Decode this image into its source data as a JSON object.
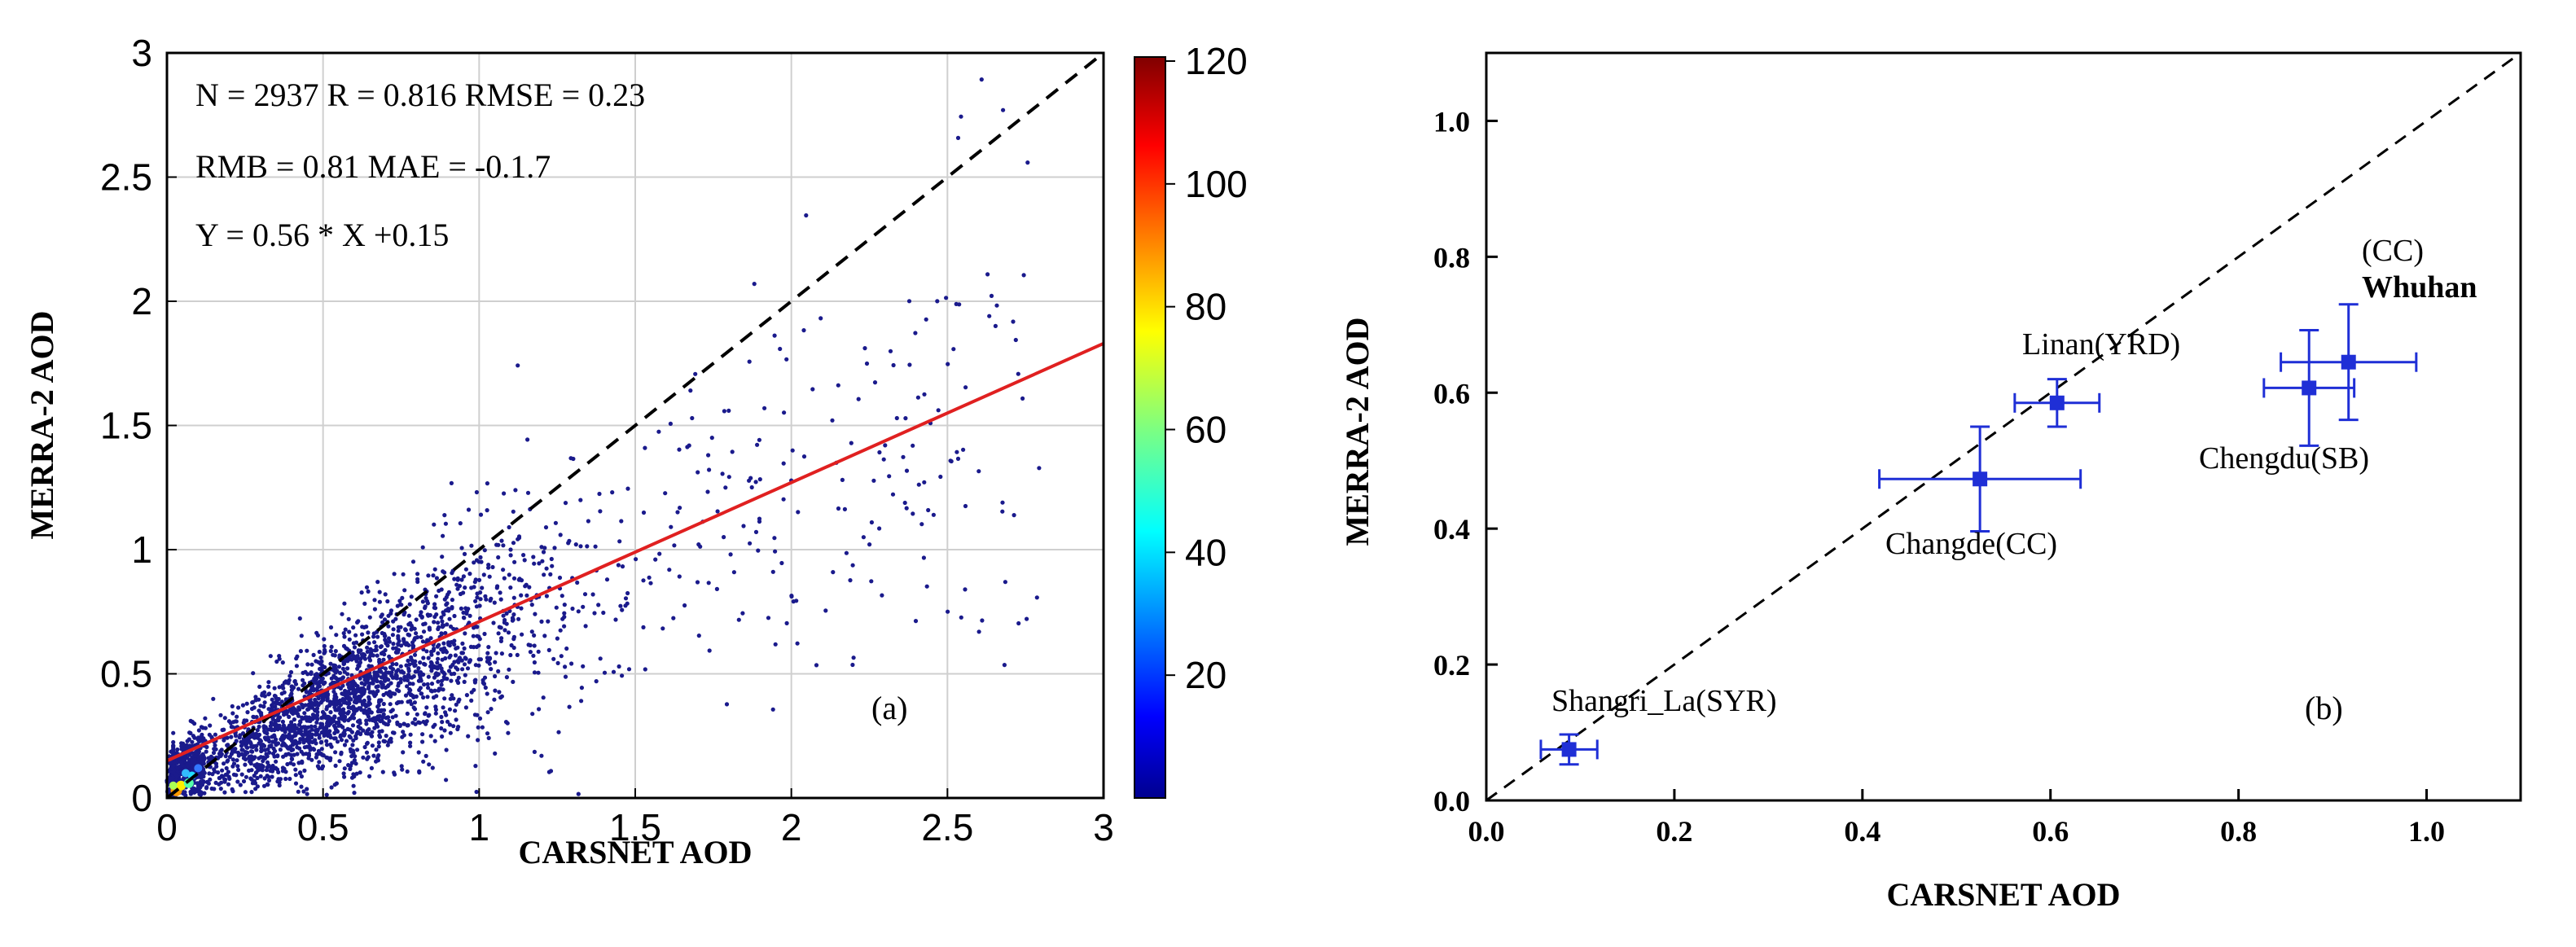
{
  "chart_data": [
    {
      "type": "scatter",
      "panel_label": "(a)",
      "xlabel": "CARSNET AOD",
      "ylabel": "MERRA-2 AOD",
      "xlim": [
        0,
        3
      ],
      "ylim": [
        0,
        3
      ],
      "xticks": [
        0,
        0.5,
        1,
        1.5,
        2,
        2.5,
        3
      ],
      "yticks": [
        0,
        0.5,
        1,
        1.5,
        2,
        2.5,
        3
      ],
      "xtick_labels": [
        "0",
        "0.5",
        "1",
        "1.5",
        "2",
        "2.5",
        "3"
      ],
      "ytick_labels": [
        "0",
        "0.5",
        "1",
        "1.5",
        "2",
        "2.5",
        "3"
      ],
      "grid": true,
      "stats": [
        "N = 2937  R = 0.816 RMSE = 0.23",
        "RMB = 0.81 MAE = -0.1.7",
        "Y = 0.56 * X +0.15"
      ],
      "n_points": 2937,
      "regression": {
        "slope": 0.56,
        "intercept": 0.15,
        "color": "#e02020"
      },
      "one_to_one_line": {
        "slope": 1,
        "intercept": 0,
        "style": "dashed",
        "color": "#000000"
      },
      "point_color": "#1a1a8c",
      "colorbar": {
        "min": 0,
        "max": 120,
        "ticks": [
          20,
          40,
          60,
          80,
          100,
          120
        ],
        "tick_labels": [
          "20",
          "40",
          "60",
          "80",
          "100",
          "120"
        ],
        "colormap": "jet"
      }
    },
    {
      "type": "scatter",
      "panel_label": "(b)",
      "xlabel": "CARSNET AOD",
      "ylabel": "MERRA-2 AOD",
      "xlim": [
        0,
        1.1
      ],
      "ylim": [
        0,
        1.1
      ],
      "xticks": [
        0.0,
        0.2,
        0.4,
        0.6,
        0.8,
        1.0
      ],
      "yticks": [
        0.0,
        0.2,
        0.4,
        0.6,
        0.8,
        1.0
      ],
      "xtick_labels": [
        "0.0",
        "0.2",
        "0.4",
        "0.6",
        "0.8",
        "1.0"
      ],
      "ytick_labels": [
        "0.0",
        "0.2",
        "0.4",
        "0.6",
        "0.8",
        "1.0"
      ],
      "one_to_one_line": {
        "slope": 1,
        "intercept": 0,
        "style": "dashed",
        "color": "#000000"
      },
      "point_color": "#1f2fd6",
      "points": [
        {
          "label": "Shangri_La(SYR)",
          "x": 0.088,
          "y": 0.075,
          "xerr": 0.03,
          "yerr": 0.022
        },
        {
          "label": "Changde(CC)",
          "x": 0.525,
          "y": 0.473,
          "xerr": 0.107,
          "yerr": 0.077
        },
        {
          "label": "Linan(YRD)",
          "x": 0.607,
          "y": 0.585,
          "xerr": 0.045,
          "yerr": 0.035
        },
        {
          "label": "Chengdu(SB)",
          "x": 0.875,
          "y": 0.607,
          "xerr": 0.048,
          "yerr": 0.085
        },
        {
          "label": "Whuhan",
          "label_extra": "(CC)",
          "x": 0.917,
          "y": 0.645,
          "xerr": 0.072,
          "yerr": 0.085
        }
      ]
    }
  ]
}
